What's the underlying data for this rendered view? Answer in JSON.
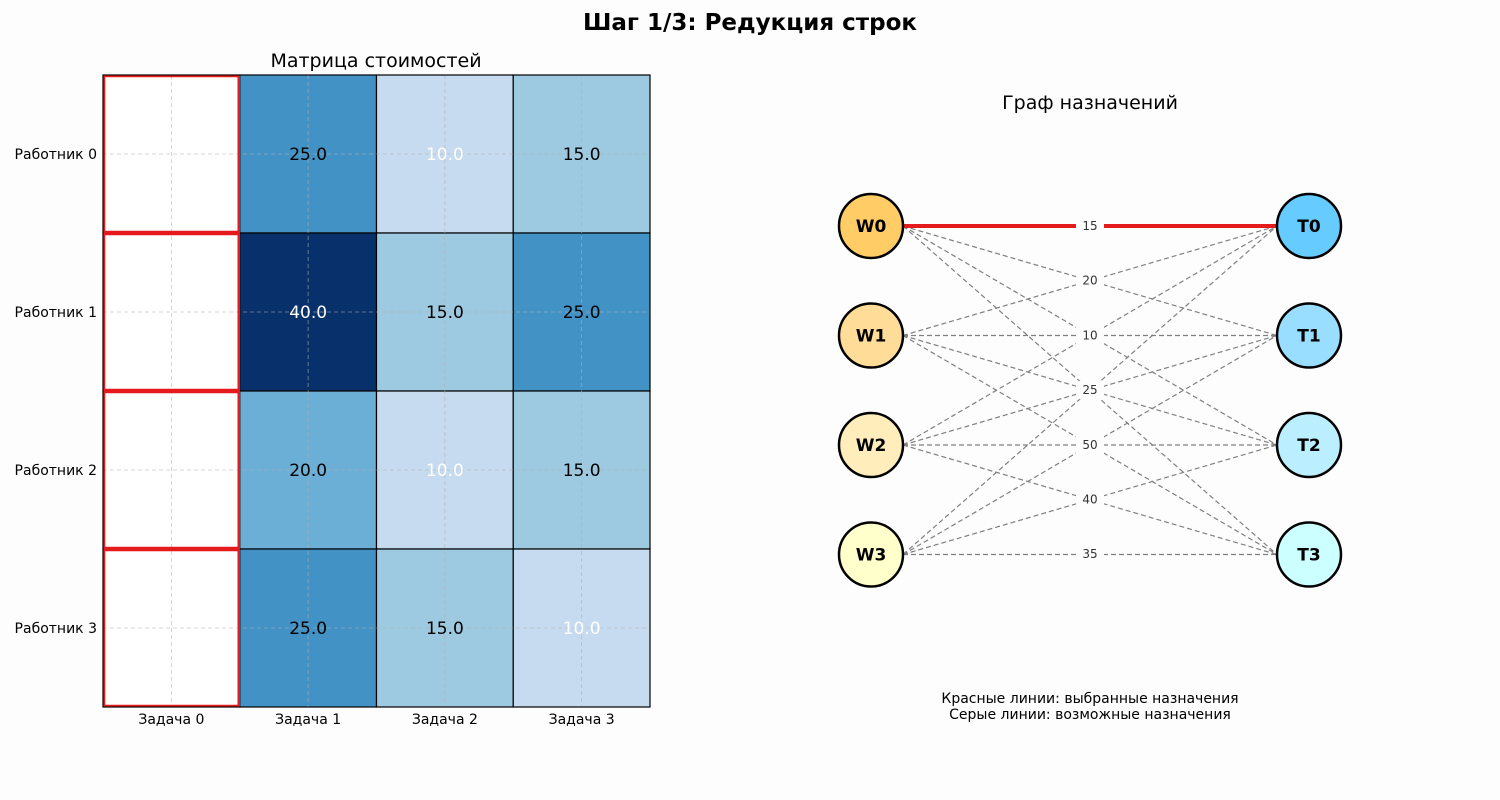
{
  "figure_title": "Шаг 1/3: Редукция строк",
  "matrix": {
    "title": "Матрица стоимостей",
    "row_labels": [
      "Работник 0",
      "Работник 1",
      "Работник 2",
      "Работник 3"
    ],
    "col_labels": [
      "Задача 0",
      "Задача 1",
      "Задача 2",
      "Задача 3"
    ]
  },
  "graph": {
    "title": "Граф назначений",
    "workers": [
      "W0",
      "W1",
      "W2",
      "W3"
    ],
    "tasks": [
      "T0",
      "T1",
      "T2",
      "T3"
    ],
    "legend": [
      "Красные линии: выбранные назначения",
      "Серые линии: возможные назначения"
    ]
  },
  "chart_data": [
    {
      "type": "heatmap",
      "title": "Матрица стоимостей",
      "rows": [
        "Работник 0",
        "Работник 1",
        "Работник 2",
        "Работник 3"
      ],
      "columns": [
        "Задача 0",
        "Задача 1",
        "Задача 2",
        "Задача 3"
      ],
      "values": [
        [
          0,
          25.0,
          10.0,
          15.0
        ],
        [
          0,
          40.0,
          15.0,
          25.0
        ],
        [
          0,
          20.0,
          10.0,
          15.0
        ],
        [
          0,
          25.0,
          15.0,
          10.0
        ]
      ],
      "shown_text": [
        [
          "",
          "25.0",
          "10.0",
          "15.0"
        ],
        [
          "",
          "40.0",
          "15.0",
          "25.0"
        ],
        [
          "",
          "20.0",
          "10.0",
          "15.0"
        ],
        [
          "",
          "25.0",
          "15.0",
          "10.0"
        ]
      ],
      "highlighted_cells": [
        [
          0,
          0
        ],
        [
          1,
          0
        ],
        [
          2,
          0
        ],
        [
          3,
          0
        ]
      ],
      "highlight_color": "#e41a1c",
      "colormap": "Blues",
      "grid": true
    },
    {
      "type": "bipartite-graph",
      "title": "Граф назначений",
      "left_nodes": [
        "W0",
        "W1",
        "W2",
        "W3"
      ],
      "right_nodes": [
        "T0",
        "T1",
        "T2",
        "T3"
      ],
      "left_colors": [
        "#ffcc66",
        "#ffdd99",
        "#ffeebb",
        "#ffffcc"
      ],
      "right_colors": [
        "#66ccff",
        "#99ddff",
        "#bbeeff",
        "#ccffff"
      ],
      "edges": [
        {
          "from": 0,
          "to": 0,
          "selected": true
        },
        {
          "from": 0,
          "to": 1
        },
        {
          "from": 0,
          "to": 2
        },
        {
          "from": 0,
          "to": 3
        },
        {
          "from": 1,
          "to": 0
        },
        {
          "from": 1,
          "to": 1
        },
        {
          "from": 1,
          "to": 2
        },
        {
          "from": 1,
          "to": 3
        },
        {
          "from": 2,
          "to": 0
        },
        {
          "from": 2,
          "to": 1
        },
        {
          "from": 2,
          "to": 2
        },
        {
          "from": 2,
          "to": 3
        },
        {
          "from": 3,
          "to": 0
        },
        {
          "from": 3,
          "to": 1
        },
        {
          "from": 3,
          "to": 2
        },
        {
          "from": 3,
          "to": 3
        }
      ],
      "edge_labels": [
        "15",
        "20",
        "10",
        "25",
        "50",
        "40",
        "35"
      ],
      "selected_color": "#e41a1c",
      "possible_color": "#808080"
    }
  ]
}
